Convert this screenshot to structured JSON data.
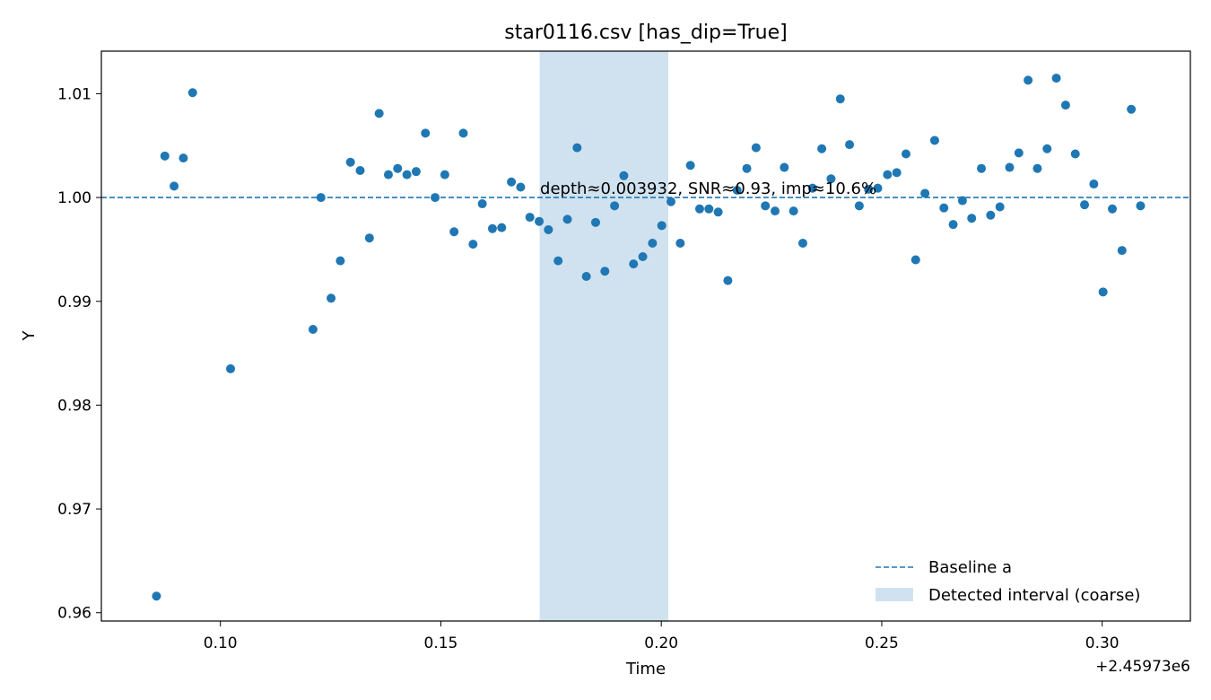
{
  "chart_data": {
    "type": "scatter",
    "title": "star0116.csv [has_dip=True]",
    "xlabel": "Time",
    "ylabel": "Y",
    "x_offset_label": "+2.45973e6",
    "xlim": [
      0.073,
      0.32
    ],
    "ylim": [
      0.9592,
      1.0141
    ],
    "xticks": [
      0.1,
      0.15,
      0.2,
      0.25,
      0.3
    ],
    "xtick_labels": [
      "0.10",
      "0.15",
      "0.20",
      "0.25",
      "0.30"
    ],
    "yticks": [
      0.96,
      0.97,
      0.98,
      0.99,
      1.0,
      1.01
    ],
    "ytick_labels": [
      "0.96",
      "0.97",
      "0.98",
      "0.99",
      "1.00",
      "1.01"
    ],
    "grid": false,
    "legend_position": "lower-right",
    "point_color": "#1f77b4",
    "baseline": {
      "name": "Baseline a",
      "y": 1.0,
      "color": "#1f77b4"
    },
    "interval": {
      "name": "Detected interval (coarse)",
      "x0": 0.1724,
      "x1": 0.2016,
      "color": "#d0e2ef"
    },
    "annotation": {
      "text": "depth≈0.003932, SNR≈0.93, imp≈10.6%",
      "x": 0.1725,
      "y": 1.0
    },
    "points": [
      [
        0.0855,
        0.9616
      ],
      [
        0.0874,
        1.004
      ],
      [
        0.0895,
        1.0011
      ],
      [
        0.0916,
        1.0038
      ],
      [
        0.0937,
        1.0101
      ],
      [
        0.1023,
        0.9835
      ],
      [
        0.121,
        0.9873
      ],
      [
        0.1228,
        1.0
      ],
      [
        0.1251,
        0.9903
      ],
      [
        0.1272,
        0.9939
      ],
      [
        0.1295,
        1.0034
      ],
      [
        0.1317,
        1.0026
      ],
      [
        0.1338,
        0.9961
      ],
      [
        0.136,
        1.0081
      ],
      [
        0.1381,
        1.0022
      ],
      [
        0.1402,
        1.0028
      ],
      [
        0.1423,
        1.0022
      ],
      [
        0.1444,
        1.0025
      ],
      [
        0.1465,
        1.0062
      ],
      [
        0.1487,
        1.0
      ],
      [
        0.1509,
        1.0022
      ],
      [
        0.153,
        0.9967
      ],
      [
        0.1551,
        1.0062
      ],
      [
        0.1573,
        0.9955
      ],
      [
        0.1594,
        0.9994
      ],
      [
        0.1617,
        0.997
      ],
      [
        0.1638,
        0.9971
      ],
      [
        0.166,
        1.0015
      ],
      [
        0.1681,
        1.001
      ],
      [
        0.1702,
        0.9981
      ],
      [
        0.1723,
        0.9977
      ],
      [
        0.1744,
        0.9969
      ],
      [
        0.1766,
        0.9939
      ],
      [
        0.1787,
        0.9979
      ],
      [
        0.1809,
        1.0048
      ],
      [
        0.183,
        0.9924
      ],
      [
        0.1851,
        0.9976
      ],
      [
        0.1872,
        0.9929
      ],
      [
        0.1894,
        0.9992
      ],
      [
        0.1915,
        1.0021
      ],
      [
        0.1937,
        0.9936
      ],
      [
        0.1958,
        0.9943
      ],
      [
        0.198,
        0.9956
      ],
      [
        0.2001,
        0.9973
      ],
      [
        0.2022,
        0.9996
      ],
      [
        0.2043,
        0.9956
      ],
      [
        0.2066,
        1.0031
      ],
      [
        0.2087,
        0.9989
      ],
      [
        0.2108,
        0.9989
      ],
      [
        0.2129,
        0.9986
      ],
      [
        0.2151,
        0.992
      ],
      [
        0.2172,
        1.0007
      ],
      [
        0.2194,
        1.0028
      ],
      [
        0.2215,
        1.0048
      ],
      [
        0.2236,
        0.9992
      ],
      [
        0.2258,
        0.9987
      ],
      [
        0.2279,
        1.0029
      ],
      [
        0.23,
        0.9987
      ],
      [
        0.2321,
        0.9956
      ],
      [
        0.2343,
        1.0009
      ],
      [
        0.2364,
        1.0047
      ],
      [
        0.2385,
        1.0018
      ],
      [
        0.2406,
        1.0095
      ],
      [
        0.2427,
        1.0051
      ],
      [
        0.2449,
        0.9992
      ],
      [
        0.247,
        1.0008
      ],
      [
        0.2491,
        1.0009
      ],
      [
        0.2513,
        1.0022
      ],
      [
        0.2534,
        1.0024
      ],
      [
        0.2555,
        1.0042
      ],
      [
        0.2577,
        0.994
      ],
      [
        0.2598,
        1.0004
      ],
      [
        0.262,
        1.0055
      ],
      [
        0.2641,
        0.999
      ],
      [
        0.2662,
        0.9974
      ],
      [
        0.2683,
        0.9997
      ],
      [
        0.2704,
        0.998
      ],
      [
        0.2726,
        1.0028
      ],
      [
        0.2747,
        0.9983
      ],
      [
        0.2768,
        0.9991
      ],
      [
        0.279,
        1.0029
      ],
      [
        0.2811,
        1.0043
      ],
      [
        0.2832,
        1.0113
      ],
      [
        0.2853,
        1.0028
      ],
      [
        0.2875,
        1.0047
      ],
      [
        0.2896,
        1.0115
      ],
      [
        0.2917,
        1.0089
      ],
      [
        0.2939,
        1.0042
      ],
      [
        0.296,
        0.9993
      ],
      [
        0.2981,
        1.0013
      ],
      [
        0.3002,
        0.9909
      ],
      [
        0.3023,
        0.9989
      ],
      [
        0.3045,
        0.9949
      ],
      [
        0.3066,
        1.0085
      ],
      [
        0.3087,
        0.9992
      ]
    ]
  }
}
